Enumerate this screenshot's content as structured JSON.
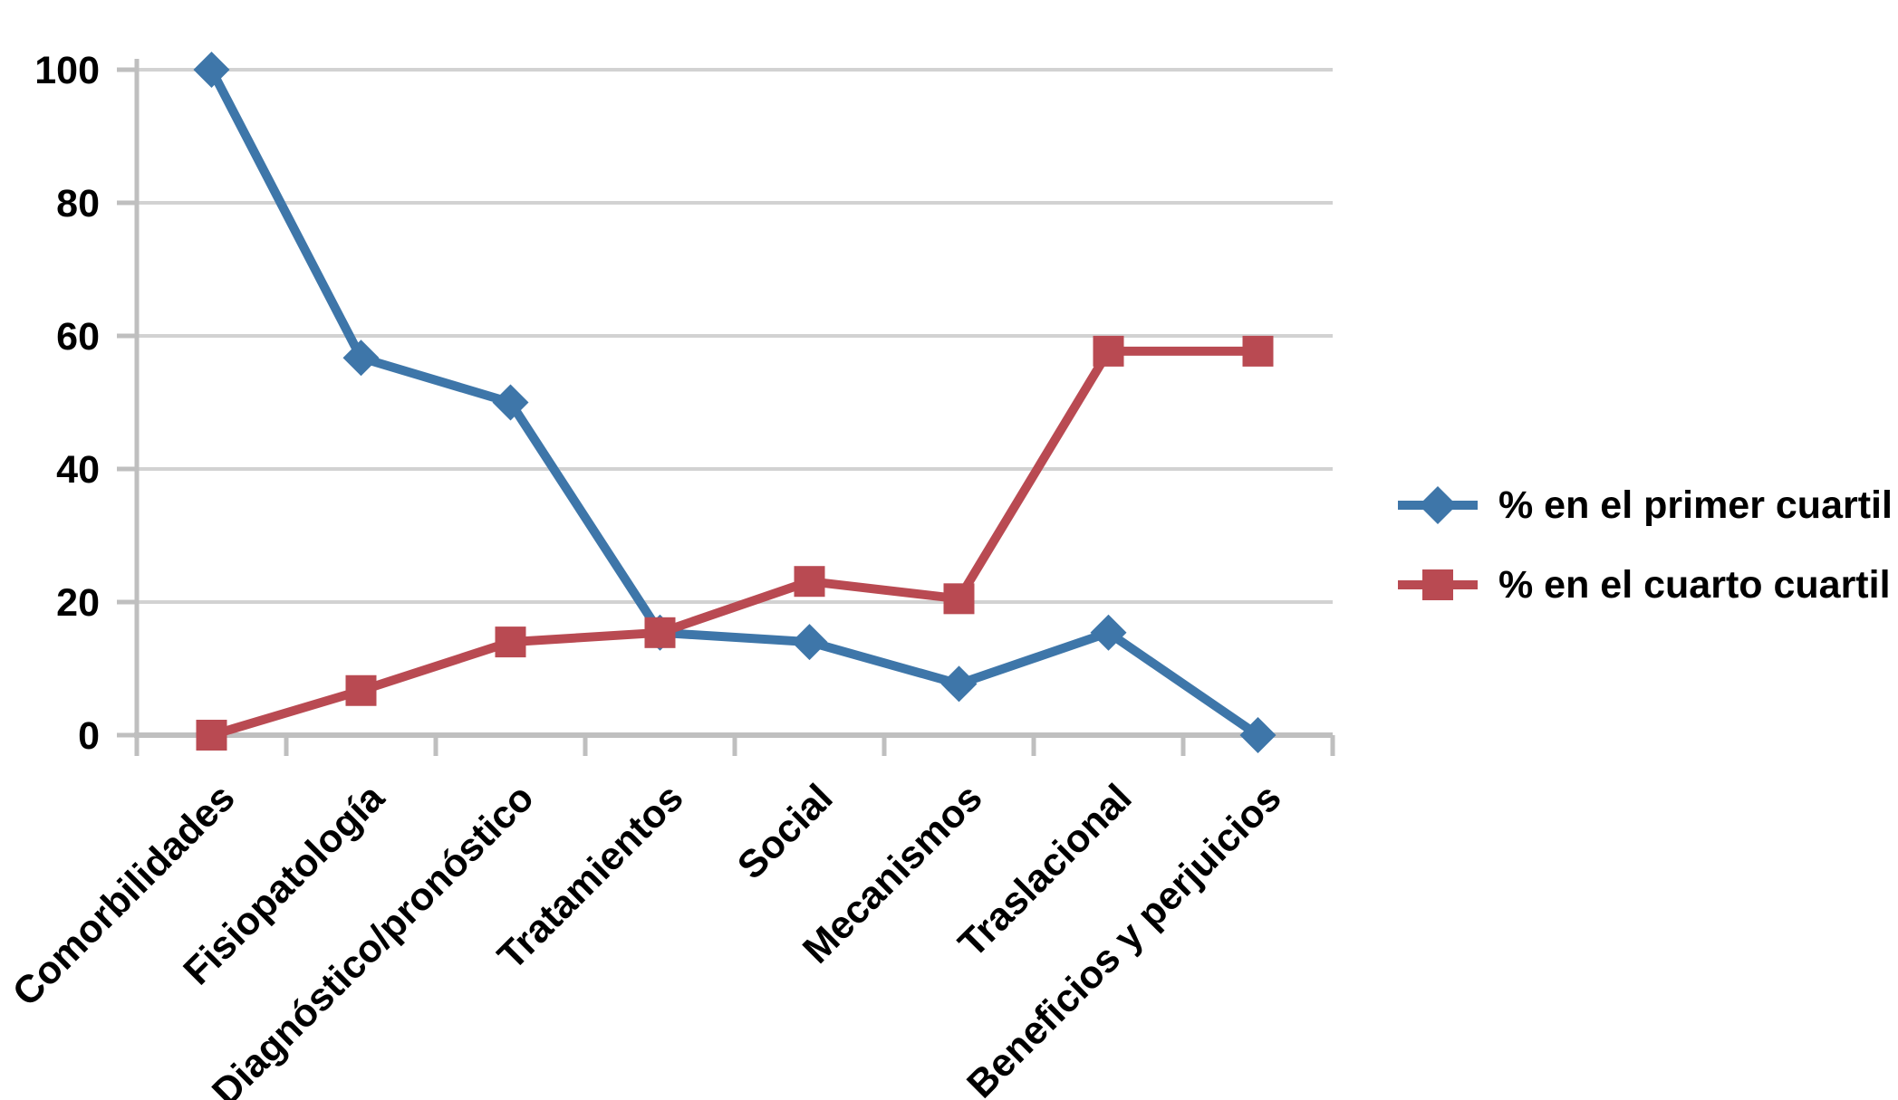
{
  "chart_data": {
    "type": "line",
    "title": "",
    "xlabel": "",
    "ylabel": "",
    "categories": [
      "Comorbilidades",
      "Fisiopatología",
      "Diagnóstico/pronóstico",
      "Tratamientos",
      "Social",
      "Mecanismos",
      "Traslacional",
      "Beneficios y perjuicios"
    ],
    "series": [
      {
        "name": "% en el primer cuartil",
        "marker": "diamond",
        "color": "#3E76A9",
        "values": [
          100,
          56.7,
          50,
          15.4,
          14,
          7.7,
          15.4,
          0
        ]
      },
      {
        "name": "% en el cuarto cuartil",
        "marker": "square",
        "color": "#B94A52",
        "values": [
          0,
          6.7,
          14,
          15.4,
          23.1,
          20.5,
          57.7,
          57.7
        ]
      }
    ],
    "ylim": [
      0,
      100
    ],
    "yticks": [
      0,
      20,
      40,
      60,
      80,
      100
    ],
    "grid": true,
    "legend_position": "right-middle",
    "grid_color": "#D2D2D2",
    "axis_color": "#BFBFBF"
  }
}
